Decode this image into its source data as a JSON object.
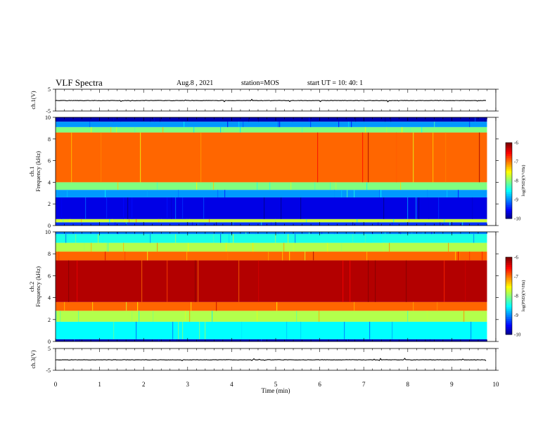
{
  "header": {
    "title": "VLF Spectra",
    "date": "Aug.8 , 2021",
    "station": "station=MOS",
    "start_ut": "start UT = 10: 40: 1"
  },
  "chart_data": [
    {
      "type": "line",
      "name": "ch1-waveform",
      "ylabel": "ch.1(V)",
      "ylim": [
        -5,
        5
      ],
      "y_ticks": [
        "5",
        "-5"
      ],
      "xlim": [
        0,
        10
      ],
      "trace_level": -0.2
    },
    {
      "type": "heatmap",
      "name": "ch1-spectrogram",
      "ylabel": "ch.1 Frequency (kHz)",
      "ylim": [
        0,
        10
      ],
      "y_ticks": [
        "0",
        "2",
        "4",
        "6",
        "8",
        "10"
      ],
      "xlim": [
        0,
        10
      ],
      "data_end_min": 9.8,
      "colorbar": {
        "label": "log(PSD)(V²/Hz)",
        "range": [
          -10,
          -6
        ],
        "ticks": [
          "-6",
          "-7",
          "-8",
          "-9",
          "-10"
        ]
      },
      "bands_khz_log_psd": [
        {
          "from": 0,
          "to": 0.3,
          "level": -9.3
        },
        {
          "from": 0.3,
          "to": 0.6,
          "level": -7.7
        },
        {
          "from": 0.6,
          "to": 2.6,
          "level": -9.6
        },
        {
          "from": 2.6,
          "to": 3.3,
          "level": -8.9
        },
        {
          "from": 3.3,
          "to": 4.0,
          "level": -8.0
        },
        {
          "from": 4.0,
          "to": 8.6,
          "level": -6.9
        },
        {
          "from": 8.6,
          "to": 9.1,
          "level": -8.0
        },
        {
          "from": 9.1,
          "to": 9.6,
          "level": -8.9
        },
        {
          "from": 9.6,
          "to": 10,
          "level": -9.8
        }
      ]
    },
    {
      "type": "heatmap",
      "name": "ch2-spectrogram",
      "ylabel": "ch.2 Frequency (kHz)",
      "ylim": [
        0,
        10
      ],
      "y_ticks": [
        "0",
        "2",
        "4",
        "6",
        "8",
        "10"
      ],
      "xlim": [
        0,
        10
      ],
      "data_end_min": 9.8,
      "colorbar": {
        "label": "log(PSD)(V²/Hz)",
        "range": [
          -10,
          -6
        ],
        "ticks": [
          "-6",
          "-7",
          "-8",
          "-9",
          "-10"
        ]
      },
      "bands_khz_log_psd": [
        {
          "from": 0,
          "to": 0.2,
          "level": -9.8
        },
        {
          "from": 0.2,
          "to": 1.8,
          "level": -8.5
        },
        {
          "from": 1.8,
          "to": 2.8,
          "level": -7.8
        },
        {
          "from": 2.8,
          "to": 3.6,
          "level": -6.9
        },
        {
          "from": 3.6,
          "to": 7.4,
          "level": -6.2
        },
        {
          "from": 7.4,
          "to": 8.2,
          "level": -6.9
        },
        {
          "from": 8.2,
          "to": 9.0,
          "level": -7.8
        },
        {
          "from": 9.0,
          "to": 9.8,
          "level": -8.4
        },
        {
          "from": 9.8,
          "to": 10,
          "level": -9.0
        }
      ]
    },
    {
      "type": "line",
      "name": "ch3-waveform",
      "ylabel": "ch.3(V)",
      "ylim": [
        -5,
        5
      ],
      "y_ticks": [
        "5",
        "-5"
      ],
      "xlim": [
        0,
        10
      ],
      "trace_level": -0.2
    }
  ],
  "x_axis": {
    "label": "Time (min)",
    "ticks": [
      "0",
      "1",
      "2",
      "3",
      "4",
      "5",
      "6",
      "7",
      "8",
      "9",
      "10"
    ]
  }
}
